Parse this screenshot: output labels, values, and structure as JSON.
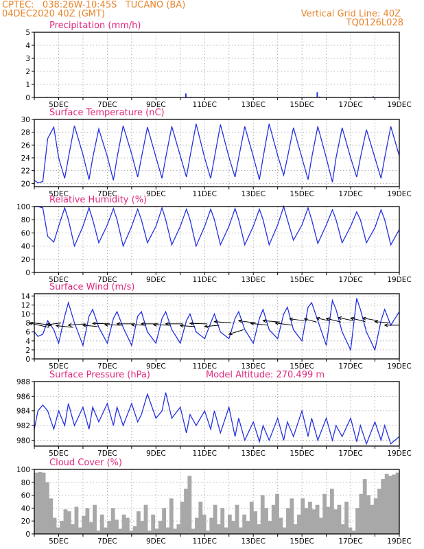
{
  "header": {
    "line1_left": "CPTEC:   038:26W-10:45S   TUCANO (BA)",
    "line2_left": "04DEC2020 40Z (GMT)",
    "line1_right": "Vertical Grid Line: 40Z",
    "line2_right": "TQ0126L028"
  },
  "colors": {
    "header": "#e8842a",
    "title": "#e0287e",
    "line": "#2430e0",
    "bars": "#a8a8a8",
    "wind_arrow": "#000000"
  },
  "x_axis": {
    "start_day": 4,
    "end_day": 19,
    "tick_labels": [
      "5DEC",
      "7DEC",
      "9DEC",
      "11DEC",
      "13DEC",
      "15DEC",
      "17DEC",
      "19DEC"
    ]
  },
  "chart_data": [
    {
      "id": "precip",
      "type": "bar",
      "title": "Precipitation (mm/h)",
      "ylim": [
        0,
        5
      ],
      "yticks": [
        0,
        1,
        2,
        3,
        4,
        5
      ],
      "x": [
        4.2,
        4.5,
        6.5,
        8.6,
        10.2,
        10.4,
        12.9,
        14.6,
        15.6,
        15.7,
        16.9,
        17.6,
        17.9,
        18.4
      ],
      "values": [
        0.03,
        0.05,
        0.04,
        0.04,
        0.3,
        0.05,
        0.04,
        0.04,
        0.4,
        0.06,
        0.04,
        0.05,
        0.08,
        0.04
      ]
    },
    {
      "id": "temp",
      "type": "line",
      "title": "Surface Temperature (nC)",
      "ylim": [
        19.5,
        30
      ],
      "yticks": [
        20,
        22,
        24,
        26,
        28,
        30
      ],
      "x": [
        4.0,
        4.15,
        4.35,
        4.55,
        4.8,
        5.0,
        5.25,
        5.4,
        5.65,
        6.0,
        6.25,
        6.4,
        6.65,
        7.0,
        7.25,
        7.4,
        7.65,
        8.0,
        8.25,
        8.4,
        8.65,
        9.0,
        9.25,
        9.4,
        9.65,
        10.0,
        10.25,
        10.4,
        10.65,
        11.0,
        11.25,
        11.4,
        11.65,
        12.0,
        12.25,
        12.4,
        12.65,
        13.0,
        13.25,
        13.4,
        13.65,
        14.0,
        14.25,
        14.4,
        14.65,
        15.0,
        15.25,
        15.4,
        15.65,
        16.0,
        16.25,
        16.4,
        16.65,
        17.0,
        17.25,
        17.4,
        17.65,
        18.0,
        18.25,
        18.4,
        18.65,
        19.0
      ],
      "values": [
        20.5,
        20.1,
        20.3,
        27.0,
        28.8,
        24.0,
        20.8,
        24.0,
        29.0,
        24.5,
        20.6,
        24.0,
        28.5,
        24.2,
        20.5,
        24.0,
        29.0,
        24.6,
        21.0,
        24.0,
        28.8,
        24.1,
        20.8,
        24.0,
        28.9,
        24.3,
        21.0,
        24.2,
        29.3,
        24.0,
        20.8,
        24.0,
        29.2,
        24.1,
        21.0,
        24.0,
        28.9,
        24.2,
        20.6,
        24.0,
        29.3,
        24.4,
        21.3,
        24.0,
        28.7,
        24.0,
        20.6,
        24.0,
        28.9,
        24.0,
        20.2,
        24.0,
        28.7,
        24.0,
        21.0,
        24.0,
        28.4,
        24.0,
        20.8,
        24.0,
        28.9,
        24.3
      ]
    },
    {
      "id": "rh",
      "type": "line",
      "title": "Relative Humidity (%)",
      "ylim": [
        0,
        100
      ],
      "yticks": [
        0,
        20,
        40,
        60,
        80,
        100
      ],
      "x": [
        4.0,
        4.15,
        4.35,
        4.55,
        4.8,
        5.0,
        5.25,
        5.4,
        5.65,
        6.0,
        6.25,
        6.4,
        6.65,
        7.0,
        7.25,
        7.4,
        7.65,
        8.0,
        8.25,
        8.4,
        8.65,
        9.0,
        9.25,
        9.4,
        9.65,
        10.0,
        10.25,
        10.4,
        10.65,
        11.0,
        11.25,
        11.4,
        11.65,
        12.0,
        12.25,
        12.4,
        12.65,
        13.0,
        13.25,
        13.4,
        13.65,
        14.0,
        14.25,
        14.4,
        14.65,
        15.0,
        15.25,
        15.4,
        15.65,
        16.0,
        16.25,
        16.4,
        16.65,
        17.0,
        17.25,
        17.4,
        17.65,
        18.0,
        18.25,
        18.4,
        18.65,
        19.0
      ],
      "values": [
        100,
        100,
        98,
        55,
        46,
        70,
        98,
        80,
        40,
        70,
        98,
        80,
        45,
        72,
        97,
        80,
        40,
        70,
        96,
        80,
        45,
        70,
        98,
        80,
        42,
        70,
        96,
        80,
        40,
        70,
        96,
        80,
        42,
        70,
        97,
        80,
        42,
        70,
        96,
        80,
        42,
        72,
        100,
        80,
        49,
        72,
        98,
        80,
        44,
        72,
        95,
        80,
        45,
        70,
        92,
        80,
        45,
        68,
        95,
        80,
        42,
        65
      ]
    },
    {
      "id": "wind",
      "type": "line",
      "title": "Surface Wind (m/s)",
      "ylim": [
        0,
        14.5
      ],
      "yticks": [
        0,
        2,
        4,
        6,
        8,
        10,
        12,
        14
      ],
      "x": [
        4.0,
        4.15,
        4.35,
        4.55,
        4.8,
        5.0,
        5.25,
        5.4,
        5.65,
        6.0,
        6.25,
        6.4,
        6.65,
        7.0,
        7.25,
        7.4,
        7.65,
        8.0,
        8.25,
        8.4,
        8.65,
        9.0,
        9.25,
        9.4,
        9.65,
        10.0,
        10.25,
        10.4,
        10.65,
        11.0,
        11.25,
        11.4,
        11.65,
        12.0,
        12.25,
        12.4,
        12.65,
        13.0,
        13.25,
        13.4,
        13.65,
        14.0,
        14.25,
        14.4,
        14.65,
        15.0,
        15.25,
        15.4,
        15.65,
        16.0,
        16.25,
        16.4,
        16.65,
        17.0,
        17.25,
        17.4,
        17.65,
        18.0,
        18.25,
        18.4,
        18.65,
        19.0
      ],
      "values": [
        6.0,
        5.0,
        5.5,
        8.5,
        6.5,
        3.5,
        9.5,
        12.5,
        8.0,
        3.0,
        9.5,
        11.0,
        7.0,
        3.5,
        9.0,
        10.5,
        7.0,
        3.0,
        9.5,
        10.5,
        6.0,
        3.5,
        9.0,
        10.5,
        6.5,
        3.5,
        8.5,
        10.0,
        6.0,
        4.5,
        8.0,
        10.0,
        6.0,
        4.5,
        9.0,
        10.5,
        6.5,
        3.5,
        9.0,
        11.0,
        6.5,
        4.5,
        10.0,
        11.5,
        6.5,
        4.0,
        11.5,
        12.5,
        8.5,
        3.0,
        13.0,
        11.0,
        6.0,
        2.0,
        13.5,
        11.0,
        6.0,
        2.0,
        8.5,
        11.0,
        7.5,
        10.5
      ],
      "arrows": {
        "x": [
          4.0,
          4.6,
          5.1,
          5.6,
          6.1,
          6.6,
          7.1,
          7.6,
          8.1,
          8.6,
          9.1,
          9.6,
          10.1,
          10.6,
          11.1,
          11.6,
          12.1,
          12.6,
          13.1,
          13.6,
          14.1,
          14.6,
          15.1,
          15.6,
          16.1,
          16.6,
          17.1,
          17.6,
          18.1,
          18.6,
          19.0
        ],
        "y": [
          8.0,
          7.0,
          8.0,
          7.0,
          7.8,
          7.2,
          7.8,
          7.5,
          7.8,
          7.5,
          7.8,
          7.5,
          7.8,
          7.2,
          7.8,
          7.5,
          8.0,
          6.5,
          8.0,
          7.5,
          8.2,
          7.5,
          8.5,
          8.2,
          8.5,
          8.2,
          8.5,
          8.3,
          8.5,
          8.0,
          7.5
        ],
        "dx": [
          0.7,
          -0.8,
          -0.6,
          -0.7,
          -0.7,
          -0.6,
          -0.7,
          -0.7,
          -0.7,
          -0.6,
          -0.7,
          -0.7,
          -0.7,
          -0.6,
          -0.7,
          -0.6,
          -0.7,
          -0.6,
          -0.7,
          -0.7,
          -0.7,
          -0.7,
          -0.6,
          -0.5,
          -0.5,
          -0.6,
          -0.6,
          -0.6,
          -0.6,
          -0.6,
          -0.6
        ],
        "dy": [
          -0.5,
          1.0,
          -0.4,
          0.4,
          -0.3,
          0.3,
          0.1,
          0.1,
          0.0,
          0.1,
          0.0,
          0.1,
          0.0,
          0.2,
          0.1,
          -0.3,
          0.3,
          -1.0,
          0.5,
          0.4,
          0.3,
          0.5,
          0.4,
          0.7,
          0.6,
          0.8,
          0.7,
          0.8,
          0.6,
          0.3,
          0.0
        ]
      }
    },
    {
      "id": "pressure",
      "type": "line",
      "title": "Surface Pressure (hPa)",
      "annotation": "Model Altitude: 270.499 m",
      "ylim": [
        979.2,
        988
      ],
      "yticks": [
        980,
        982,
        984,
        986,
        988
      ],
      "x": [
        4.0,
        4.15,
        4.35,
        4.55,
        4.8,
        5.0,
        5.25,
        5.4,
        5.65,
        6.0,
        6.25,
        6.4,
        6.65,
        7.0,
        7.25,
        7.4,
        7.65,
        8.0,
        8.25,
        8.4,
        8.65,
        9.0,
        9.25,
        9.4,
        9.65,
        10.0,
        10.25,
        10.4,
        10.65,
        11.0,
        11.25,
        11.4,
        11.65,
        12.0,
        12.25,
        12.4,
        12.65,
        13.0,
        13.25,
        13.4,
        13.65,
        14.0,
        14.25,
        14.4,
        14.65,
        15.0,
        15.25,
        15.4,
        15.65,
        16.0,
        16.25,
        16.4,
        16.65,
        17.0,
        17.25,
        17.4,
        17.65,
        18.0,
        18.25,
        18.4,
        18.65,
        19.0
      ],
      "values": [
        981.5,
        984.0,
        984.8,
        984.0,
        981.5,
        984.0,
        982.0,
        985.0,
        982.0,
        984.5,
        981.5,
        984.5,
        982.5,
        985.0,
        982.0,
        984.5,
        982.0,
        985.0,
        982.5,
        983.5,
        986.3,
        983.0,
        984.0,
        986.5,
        983.0,
        984.5,
        981.0,
        983.5,
        982.0,
        984.0,
        981.5,
        984.0,
        981.0,
        984.5,
        980.5,
        983.0,
        980.0,
        982.5,
        979.8,
        982.0,
        980.0,
        983.0,
        980.0,
        982.5,
        980.5,
        984.0,
        980.5,
        983.0,
        980.0,
        983.0,
        980.0,
        982.0,
        980.5,
        983.0,
        979.8,
        982.0,
        979.5,
        982.5,
        980.0,
        982.0,
        979.5,
        980.5
      ]
    },
    {
      "id": "cloud",
      "type": "bar",
      "title": "Cloud Cover (%)",
      "ylim": [
        0,
        100
      ],
      "yticks": [
        0,
        20,
        40,
        60,
        80,
        100
      ],
      "x": [
        4.0,
        4.15,
        4.3,
        4.45,
        4.6,
        4.75,
        4.9,
        5.05,
        5.2,
        5.35,
        5.5,
        5.65,
        5.8,
        5.95,
        6.1,
        6.25,
        6.4,
        6.55,
        6.7,
        6.85,
        7.0,
        7.15,
        7.3,
        7.45,
        7.6,
        7.75,
        7.9,
        8.05,
        8.2,
        8.35,
        8.5,
        8.65,
        8.8,
        8.95,
        9.1,
        9.25,
        9.4,
        9.55,
        9.7,
        9.85,
        10.0,
        10.15,
        10.3,
        10.45,
        10.6,
        10.75,
        10.9,
        11.05,
        11.2,
        11.35,
        11.5,
        11.65,
        11.8,
        11.95,
        12.1,
        12.25,
        12.4,
        12.55,
        12.7,
        12.85,
        13.0,
        13.15,
        13.3,
        13.45,
        13.6,
        13.75,
        13.9,
        14.05,
        14.2,
        14.35,
        14.5,
        14.65,
        14.8,
        14.95,
        15.1,
        15.25,
        15.4,
        15.55,
        15.7,
        15.85,
        16.0,
        16.15,
        16.3,
        16.45,
        16.6,
        16.75,
        16.9,
        17.05,
        17.2,
        17.35,
        17.5,
        17.65,
        17.8,
        17.95,
        18.1,
        18.25,
        18.4,
        18.55,
        18.7,
        18.85
      ],
      "values": [
        95,
        96,
        95,
        80,
        55,
        25,
        10,
        20,
        38,
        35,
        15,
        42,
        10,
        28,
        40,
        18,
        45,
        5,
        30,
        10,
        20,
        40,
        22,
        8,
        30,
        25,
        5,
        12,
        35,
        20,
        45,
        5,
        30,
        8,
        20,
        40,
        10,
        55,
        8,
        15,
        50,
        70,
        90,
        8,
        25,
        50,
        30,
        5,
        25,
        45,
        15,
        40,
        10,
        30,
        20,
        45,
        10,
        30,
        20,
        50,
        35,
        15,
        60,
        40,
        20,
        45,
        62,
        25,
        10,
        40,
        55,
        15,
        30,
        55,
        40,
        50,
        38,
        45,
        25,
        62,
        42,
        70,
        38,
        45,
        15,
        50,
        10,
        5,
        40,
        62,
        85,
        60,
        45,
        55,
        70,
        85,
        93,
        90,
        92,
        95
      ]
    }
  ]
}
